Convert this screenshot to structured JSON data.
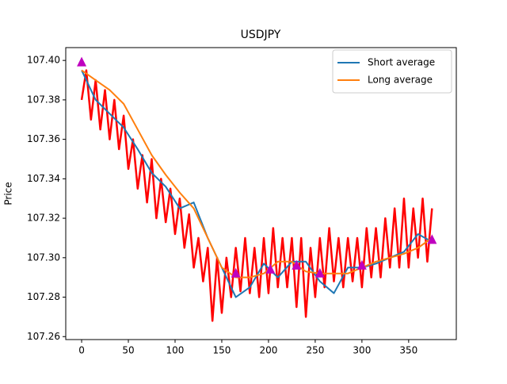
{
  "chart_data": {
    "type": "line",
    "title": "USDJPY",
    "y_label": "Price",
    "xlim": [
      -17,
      401
    ],
    "ylim": [
      107.2585,
      107.4065
    ],
    "xticks": [
      0,
      50,
      100,
      150,
      200,
      250,
      300,
      350
    ],
    "yticks": [
      107.26,
      107.28,
      {
        "value": 107.3,
        "label": "107.30"
      },
      107.32,
      107.34,
      107.36,
      107.38,
      {
        "value": 107.4,
        "label": "107.40"
      }
    ],
    "legend": "upper right",
    "series": [
      {
        "color": "#ff0000",
        "style": "line",
        "width": 2.5,
        "x": [
          0,
          5,
          10,
          15,
          20,
          25,
          30,
          35,
          40,
          45,
          50,
          55,
          60,
          65,
          70,
          75,
          80,
          85,
          90,
          95,
          100,
          105,
          110,
          115,
          120,
          125,
          130,
          135,
          140,
          145,
          150,
          155,
          160,
          165,
          170,
          175,
          180,
          185,
          190,
          195,
          200,
          205,
          210,
          215,
          220,
          225,
          230,
          235,
          240,
          245,
          250,
          255,
          260,
          265,
          270,
          275,
          280,
          285,
          290,
          295,
          300,
          305,
          310,
          315,
          320,
          325,
          330,
          335,
          340,
          345,
          350,
          355,
          360,
          365,
          370,
          375
        ],
        "values": [
          107.38,
          107.395,
          107.37,
          107.39,
          107.365,
          107.385,
          107.36,
          107.38,
          107.355,
          107.372,
          107.345,
          107.36,
          107.335,
          107.352,
          107.328,
          107.35,
          107.32,
          107.34,
          107.318,
          107.335,
          107.312,
          107.33,
          107.305,
          107.322,
          107.295,
          107.31,
          107.288,
          107.305,
          107.268,
          107.3,
          107.272,
          107.3,
          107.28,
          107.305,
          107.283,
          107.31,
          107.282,
          107.305,
          107.28,
          107.31,
          107.282,
          107.315,
          107.285,
          107.31,
          107.285,
          107.31,
          107.275,
          107.31,
          107.27,
          107.305,
          107.28,
          107.31,
          107.285,
          107.315,
          107.288,
          107.31,
          107.285,
          107.31,
          107.288,
          107.31,
          107.285,
          107.315,
          107.29,
          107.315,
          107.29,
          107.32,
          107.295,
          107.325,
          107.295,
          107.33,
          107.295,
          107.325,
          107.3,
          107.33,
          107.298,
          107.325
        ]
      },
      {
        "name": "Short average",
        "color": "#1f77b4",
        "style": "line",
        "width": 2,
        "x": [
          0,
          15,
          30,
          45,
          60,
          75,
          90,
          105,
          120,
          135,
          150,
          165,
          180,
          195,
          210,
          225,
          240,
          255,
          270,
          285,
          300,
          315,
          330,
          345,
          360,
          375
        ],
        "values": [
          107.395,
          107.38,
          107.373,
          107.366,
          107.355,
          107.343,
          107.336,
          107.325,
          107.328,
          107.31,
          107.295,
          107.28,
          107.285,
          107.297,
          107.29,
          107.298,
          107.298,
          107.288,
          107.282,
          107.295,
          107.295,
          107.297,
          107.3,
          107.303,
          107.312,
          107.308
        ]
      },
      {
        "name": "Long average",
        "color": "#ff7f0e",
        "style": "line",
        "width": 2,
        "x": [
          0,
          15,
          30,
          45,
          60,
          75,
          90,
          105,
          120,
          135,
          150,
          165,
          180,
          195,
          210,
          225,
          240,
          255,
          270,
          285,
          300,
          315,
          330,
          345,
          360,
          375
        ],
        "values": [
          107.395,
          107.39,
          107.385,
          107.378,
          107.365,
          107.352,
          107.342,
          107.333,
          107.325,
          107.31,
          107.295,
          107.29,
          107.29,
          107.292,
          107.298,
          107.298,
          107.293,
          107.292,
          107.292,
          107.292,
          107.295,
          107.298,
          107.3,
          107.302,
          107.305,
          107.31
        ]
      },
      {
        "color": "#bf00bf",
        "style": "triangle",
        "x": [
          0,
          165,
          202,
          230,
          255,
          300,
          375
        ],
        "values": [
          107.399,
          107.292,
          107.294,
          107.296,
          107.292,
          107.296,
          107.309
        ]
      }
    ]
  }
}
